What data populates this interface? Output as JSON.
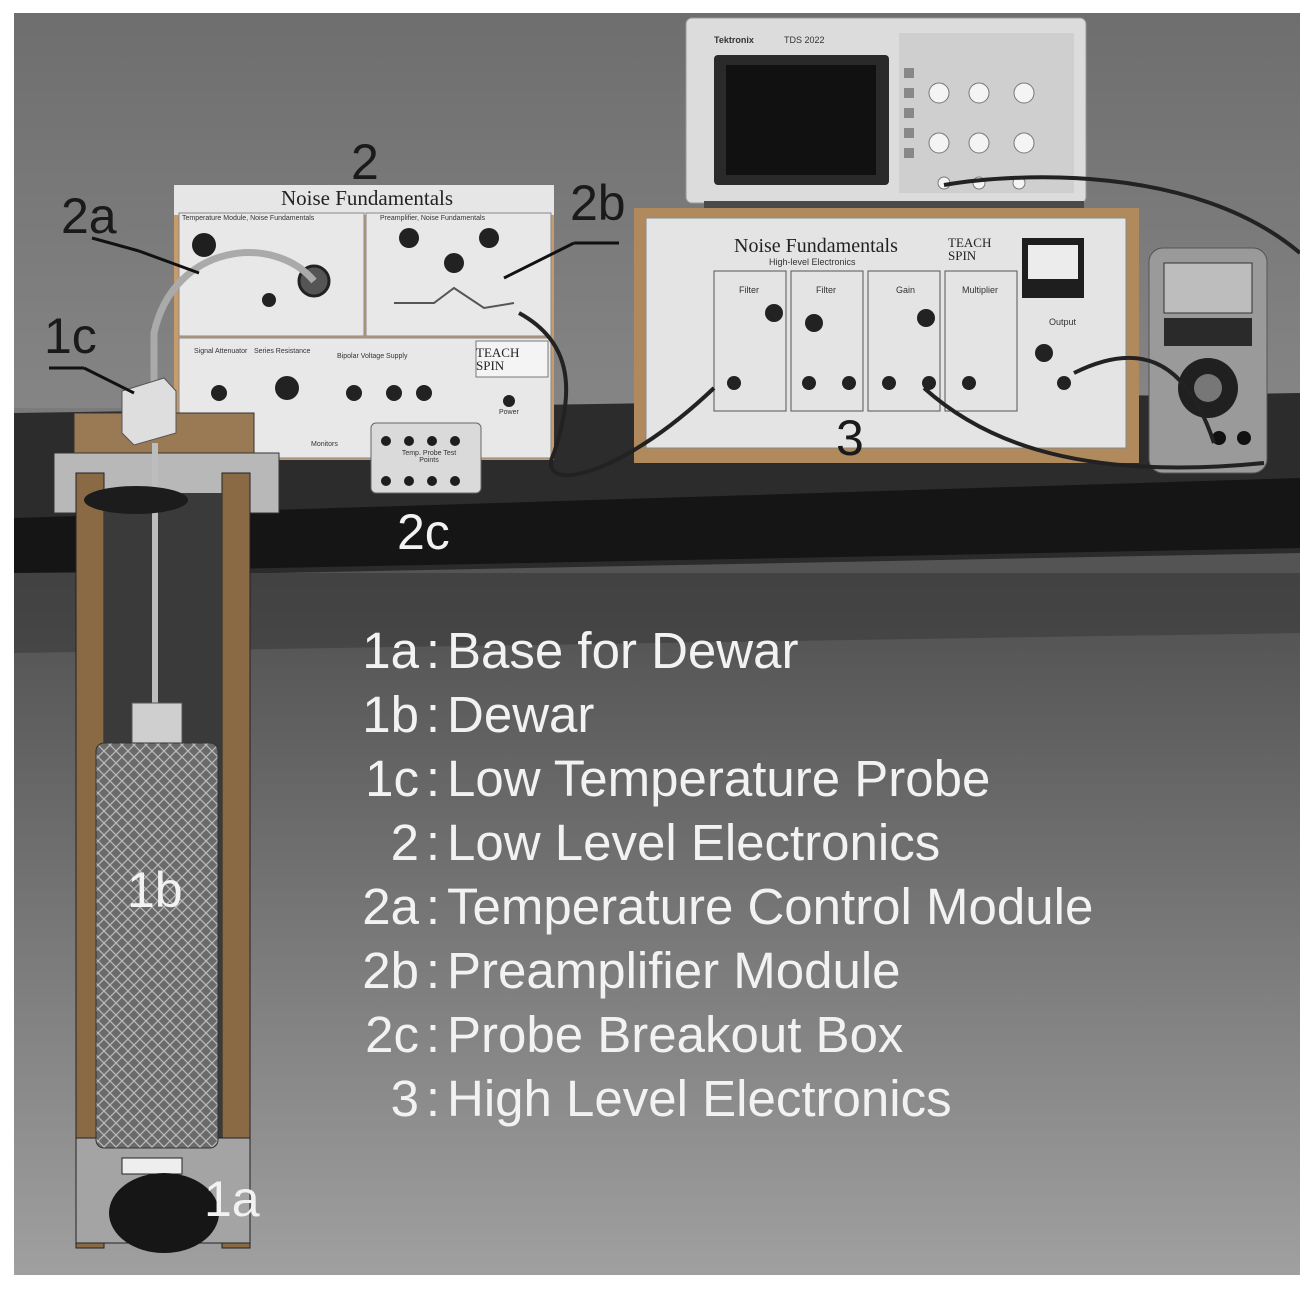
{
  "callouts": {
    "c2": "2",
    "c2a": "2a",
    "c2b": "2b",
    "c1c": "1c",
    "c3": "3",
    "c2c": "2c",
    "c1b": "1b",
    "c1a": "1a"
  },
  "legend": [
    {
      "key": "1a",
      "sep": ":",
      "text": "Base for Dewar"
    },
    {
      "key": "1b",
      "sep": ":",
      "text": "Dewar"
    },
    {
      "key": "1c",
      "sep": ":",
      "text": "Low Temperature Probe"
    },
    {
      "key": "2",
      "sep": ":",
      "text": "Low Level Electronics"
    },
    {
      "key": "2a",
      "sep": ":",
      "text": "Temperature Control Module"
    },
    {
      "key": "2b",
      "sep": ":",
      "text": "Preamplifier Module"
    },
    {
      "key": "2c",
      "sep": ":",
      "text": "Probe Breakout Box"
    },
    {
      "key": "3",
      "sep": ":",
      "text": "High Level Electronics"
    }
  ],
  "low_level_panel": {
    "title": "Noise Fundamentals",
    "temp_module": "Temperature Module, Noise Fundamentals",
    "preamp_module": "Preamplifier, Noise Fundamentals",
    "brand": "TEACH SPIN",
    "attenuator": "Signal Attenuator",
    "series_resistance": "Series Resistance",
    "bipolar_supply": "Bipolar Voltage Supply",
    "power": "Power",
    "monitors": "Monitors"
  },
  "breakout_box": {
    "title": "Temp. Probe Test Points"
  },
  "high_level_panel": {
    "title": "Noise Fundamentals",
    "subtitle": "High-level Electronics",
    "brand": "TEACH SPIN",
    "sections": [
      "Filter",
      "Filter",
      "Gain",
      "Multiplier",
      "Output"
    ]
  },
  "oscilloscope": {
    "brand": "Tektronix",
    "model": "TDS 2022"
  },
  "colors": {
    "background": "#7b7b7b",
    "table": "#1c1c1c",
    "panel": "#e6e6e6",
    "label_light": "#f2f2f2",
    "label_dark": "#1a1a1a"
  }
}
